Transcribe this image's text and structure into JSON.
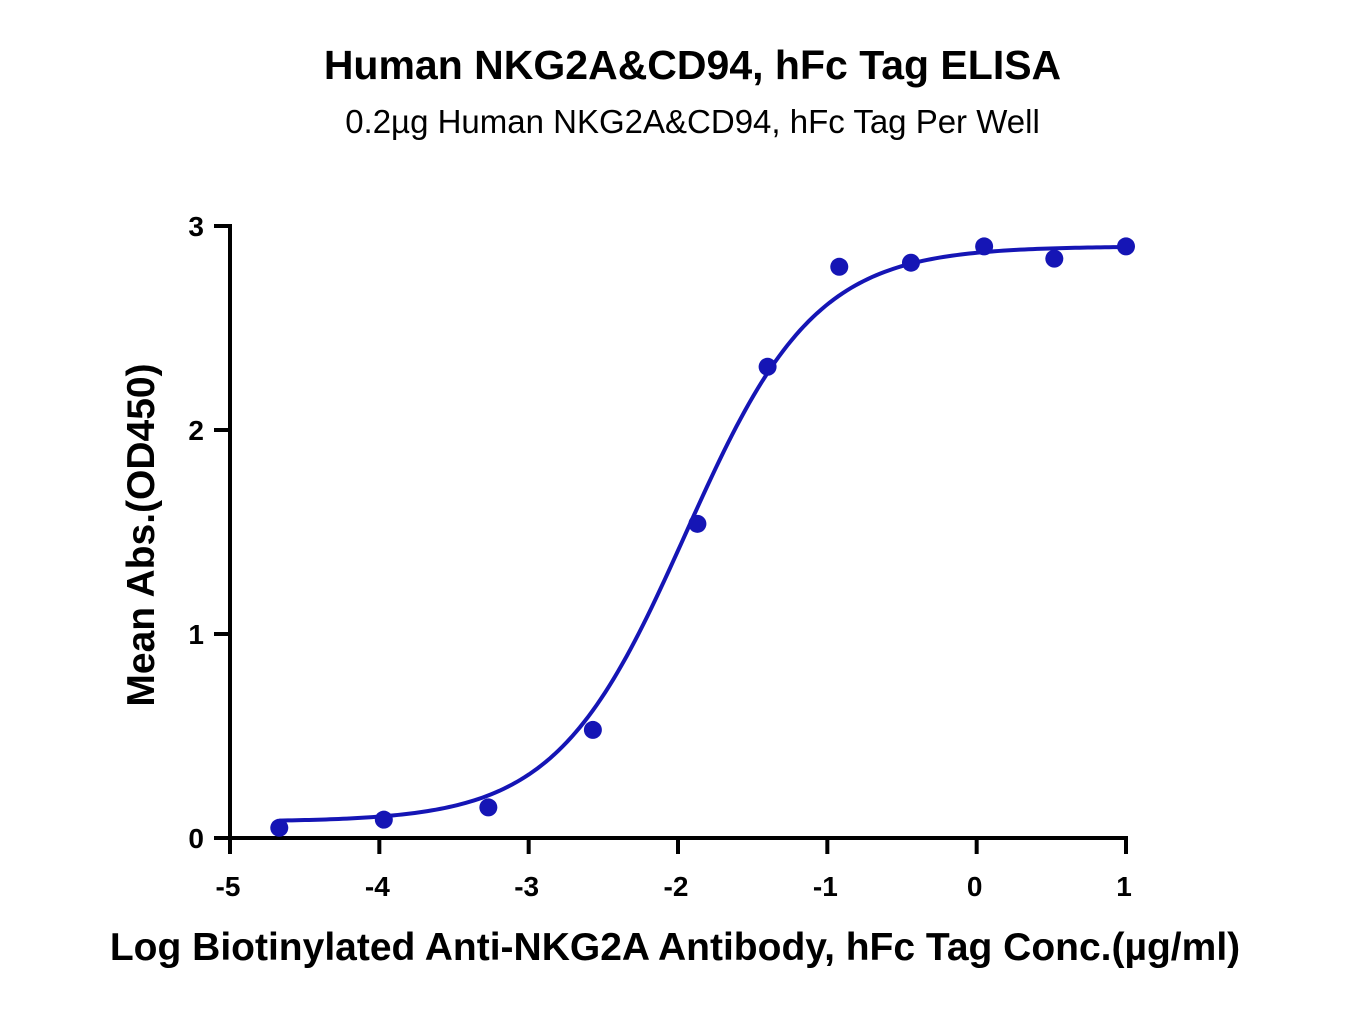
{
  "chart_data": {
    "type": "scatter",
    "title": "Human NKG2A&CD94, hFc Tag ELISA",
    "subtitle": "0.2µg Human NKG2A&CD94, hFc Tag Per Well",
    "xlabel": "Log Biotinylated Anti-NKG2A Antibody, hFc Tag Conc.(µg/ml)",
    "ylabel": "Mean Abs.(OD450)",
    "xlim": [
      -5,
      1
    ],
    "ylim": [
      0,
      3
    ],
    "xticks": [
      "-5",
      "-4",
      "-3",
      "-2",
      "-1",
      "0",
      "1"
    ],
    "yticks": [
      "0",
      "1",
      "2",
      "3"
    ],
    "grid": false,
    "series": [
      {
        "color": "#1515b5",
        "marker": "circle",
        "x": [
          -4.67,
          -3.97,
          -3.27,
          -2.57,
          -1.87,
          -1.4,
          -0.92,
          -0.44,
          0.05,
          0.52,
          1.0
        ],
        "y": [
          0.05,
          0.09,
          0.15,
          0.53,
          1.54,
          2.31,
          2.8,
          2.82,
          2.9,
          2.84,
          2.9
        ],
        "fit": {
          "model": "4PL",
          "bottom": 0.08,
          "top": 2.9,
          "logEC50": -1.95,
          "hill": 1.0,
          "x_range": [
            -4.67,
            1.0
          ]
        }
      }
    ]
  }
}
